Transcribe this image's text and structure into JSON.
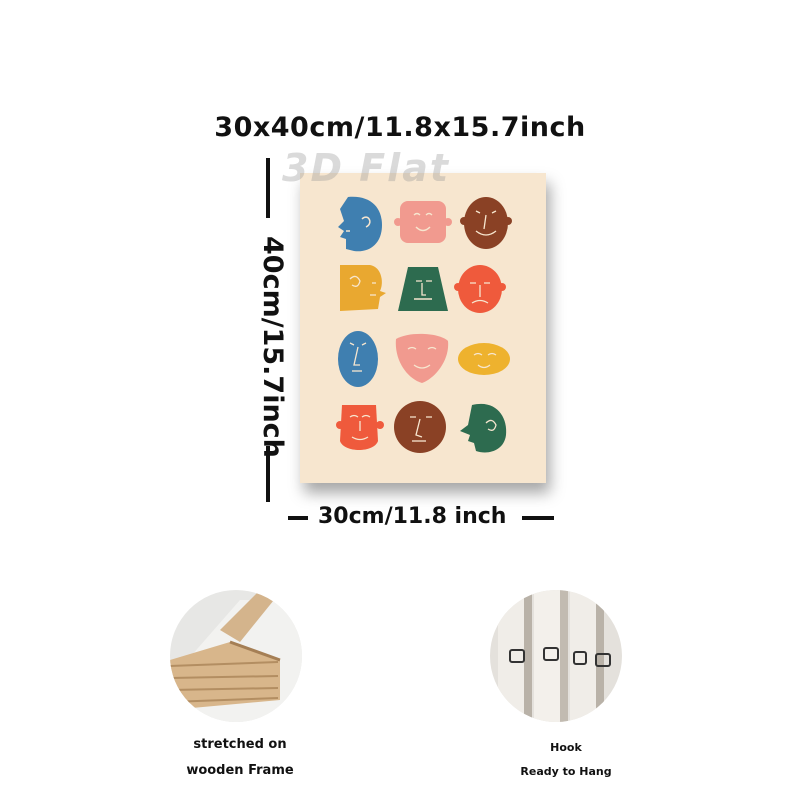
{
  "dimensions": {
    "top_label": "30x40cm/11.8x15.7inch",
    "left_label": "40cm/15.7inch",
    "bottom_label": "30cm/11.8 inch"
  },
  "watermark": "3D Flat",
  "art": {
    "background": "#f7e6cf",
    "faces": [
      {
        "name": "blue-profile-face",
        "color": "#3f7fb0"
      },
      {
        "name": "pink-square-face",
        "color": "#f19a8f"
      },
      {
        "name": "brown-round-face",
        "color": "#8a4125"
      },
      {
        "name": "yellow-profile-face",
        "color": "#e9a830"
      },
      {
        "name": "green-trapezoid-face",
        "color": "#2d6b4f"
      },
      {
        "name": "red-round-face",
        "color": "#ef5a3c"
      },
      {
        "name": "blue-oval-face",
        "color": "#3f7fb0"
      },
      {
        "name": "pink-triangle-face",
        "color": "#f19a8f"
      },
      {
        "name": "yellow-oval-face",
        "color": "#eeb22e"
      },
      {
        "name": "red-cup-face",
        "color": "#ef5a3c"
      },
      {
        "name": "brown-circle-face",
        "color": "#8a4125"
      },
      {
        "name": "green-profile-face",
        "color": "#2d6b4f"
      }
    ]
  },
  "features": [
    {
      "caption_line1": "stretched on",
      "caption_line2": "wooden Frame",
      "icon": "wooden-frame-photo"
    },
    {
      "caption_line1": "Hook",
      "caption_line2": "Ready to Hang",
      "icon": "hook-photo"
    }
  ]
}
